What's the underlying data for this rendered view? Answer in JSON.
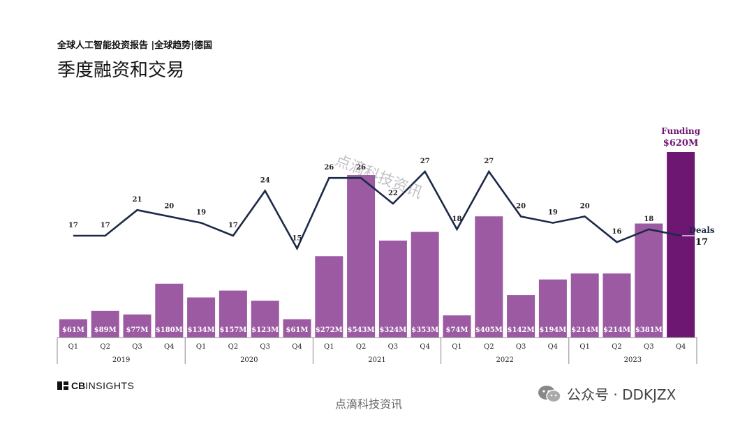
{
  "header": {
    "subtitle": "全球人工智能投资报告 |全球趋势|德国",
    "title": "季度融资和交易"
  },
  "chart_data": {
    "type": "bar",
    "bar_series": {
      "name": "Funding",
      "unit": "$M",
      "color": "#9b5aa2",
      "highlight_color": "#6e1772"
    },
    "line_series": {
      "name": "Deals",
      "color": "#1c2a48"
    },
    "quarters": [
      "Q1",
      "Q2",
      "Q3",
      "Q4",
      "Q1",
      "Q2",
      "Q3",
      "Q4",
      "Q1",
      "Q2",
      "Q3",
      "Q4",
      "Q1",
      "Q2",
      "Q3",
      "Q4",
      "Q1",
      "Q2",
      "Q3",
      "Q4"
    ],
    "years": [
      "2019",
      "2020",
      "2021",
      "2022",
      "2023"
    ],
    "funding": [
      61,
      89,
      77,
      180,
      134,
      157,
      123,
      61,
      272,
      543,
      324,
      353,
      74,
      405,
      142,
      194,
      214,
      214,
      381,
      620
    ],
    "funding_labels": [
      "$61M",
      "$89M",
      "$77M",
      "$180M",
      "$134M",
      "$157M",
      "$123M",
      "$61M",
      "$272M",
      "$543M",
      "$324M",
      "$353M",
      "$74M",
      "$405M",
      "$142M",
      "$194M",
      "$214M",
      "$214M",
      "$381M",
      ""
    ],
    "deals": [
      17,
      17,
      21,
      20,
      19,
      17,
      24,
      15,
      26,
      26,
      22,
      27,
      18,
      27,
      20,
      19,
      20,
      16,
      18,
      17
    ],
    "deal_labels": [
      "17",
      "17",
      "21",
      "20",
      "19",
      "17",
      "24",
      "15",
      "26",
      "26",
      "22",
      "27",
      "18",
      "27",
      "20",
      "19",
      "20",
      "16",
      "18",
      ""
    ],
    "last_funding": {
      "label": "Funding",
      "value": "$620M"
    },
    "last_deals": {
      "label": "Deals",
      "value": "17"
    }
  },
  "footer": {
    "brand_bold": "CB",
    "brand_rest": "INSIGHTS",
    "watermark_center": "点滴科技资讯",
    "watermark_diag": "点滴科技资讯",
    "wechat": "公众号 · DDKJZX"
  }
}
